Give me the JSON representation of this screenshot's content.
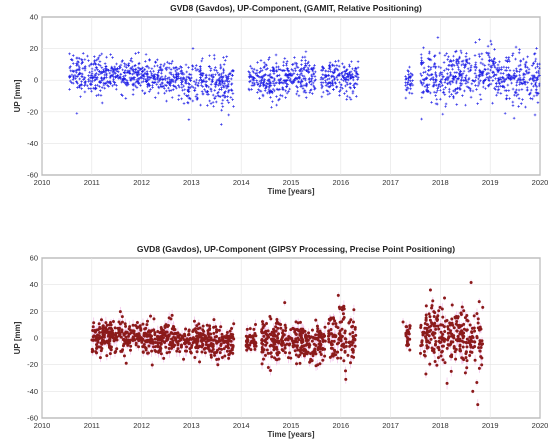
{
  "chart_data": [
    {
      "type": "scatter",
      "title": "GVD8 (Gavdos), UP-Component, (GAMIT, Relative Positioning)",
      "xlabel": "Time [years]",
      "ylabel": "UP [mm]",
      "xlim": [
        2010,
        2020
      ],
      "ylim": [
        -60,
        40
      ],
      "xticks": [
        "2010",
        "2011",
        "2012",
        "2013",
        "2014",
        "2015",
        "2016",
        "2017",
        "2018",
        "2019",
        "2020"
      ],
      "yticks": [
        "-60",
        "-40",
        "-20",
        "0",
        "20",
        "40"
      ],
      "grid": true,
      "marker_color": "#1f1fe6",
      "marker": "plus",
      "series": [
        {
          "segments": [
            {
              "x_start": 2010.55,
              "x_end": 2011.2,
              "mean": 4,
              "spread": 6
            },
            {
              "x_start": 2011.2,
              "x_end": 2012.0,
              "mean": 3,
              "spread": 5
            },
            {
              "x_start": 2012.0,
              "x_end": 2012.85,
              "mean": 1,
              "spread": 5
            },
            {
              "x_start": 2012.85,
              "x_end": 2013.85,
              "mean": -2,
              "spread": 7
            },
            {
              "x_start": 2014.15,
              "x_end": 2014.8,
              "mean": 0,
              "spread": 6
            },
            {
              "x_start": 2014.8,
              "x_end": 2015.5,
              "mean": 1,
              "spread": 6
            },
            {
              "x_start": 2015.6,
              "x_end": 2016.35,
              "mean": 1,
              "spread": 5
            },
            {
              "x_start": 2017.3,
              "x_end": 2017.45,
              "mean": 0,
              "spread": 4
            },
            {
              "x_start": 2017.6,
              "x_end": 2018.3,
              "mean": 2,
              "spread": 8
            },
            {
              "x_start": 2018.3,
              "x_end": 2019.1,
              "mean": 4,
              "spread": 8
            },
            {
              "x_start": 2019.1,
              "x_end": 2020.0,
              "mean": 0,
              "spread": 8
            }
          ],
          "outliers": [
            [
              2010.7,
              -21
            ],
            [
              2012.95,
              -25
            ],
            [
              2013.6,
              -28
            ],
            [
              2013.75,
              -22
            ],
            [
              2017.95,
              27
            ],
            [
              2019.3,
              -21
            ],
            [
              2019.9,
              -22
            ],
            [
              2014.7,
              16
            ],
            [
              2015.3,
              18
            ]
          ]
        }
      ]
    },
    {
      "type": "scatter",
      "title": "GVD8 (Gavdos), UP-Component (GIPSY Processing, Precise Point Positioning)",
      "xlabel": "Time [years]",
      "ylabel": "UP [mm]",
      "xlim": [
        2010,
        2020
      ],
      "ylim": [
        -60,
        60
      ],
      "xticks": [
        "2010",
        "2011",
        "2012",
        "2013",
        "2014",
        "2015",
        "2016",
        "2017",
        "2018",
        "2019",
        "2020"
      ],
      "yticks": [
        "-60",
        "-40",
        "-20",
        "0",
        "20",
        "40",
        "60"
      ],
      "grid": true,
      "marker_color": "#8b1a1a",
      "error_color": "#f3c8ee",
      "marker": "dot",
      "series": [
        {
          "segments": [
            {
              "x_start": 2011.0,
              "x_end": 2012.0,
              "mean": 1,
              "spread": 6
            },
            {
              "x_start": 2012.0,
              "x_end": 2012.9,
              "mean": 0,
              "spread": 6
            },
            {
              "x_start": 2012.9,
              "x_end": 2013.85,
              "mean": -2,
              "spread": 6
            },
            {
              "x_start": 2014.1,
              "x_end": 2014.3,
              "mean": -3,
              "spread": 5
            },
            {
              "x_start": 2014.4,
              "x_end": 2015.2,
              "mean": -2,
              "spread": 8
            },
            {
              "x_start": 2015.2,
              "x_end": 2015.7,
              "mean": -4,
              "spread": 7
            },
            {
              "x_start": 2015.75,
              "x_end": 2016.3,
              "mean": 0,
              "spread": 10
            },
            {
              "x_start": 2017.3,
              "x_end": 2017.4,
              "mean": 0,
              "spread": 5
            },
            {
              "x_start": 2017.6,
              "x_end": 2018.2,
              "mean": 3,
              "spread": 12
            },
            {
              "x_start": 2018.2,
              "x_end": 2018.85,
              "mean": 0,
              "spread": 11
            }
          ],
          "outliers": [
            [
              2015.95,
              32
            ],
            [
              2016.1,
              -31
            ],
            [
              2017.8,
              36
            ],
            [
              2018.65,
              -40
            ],
            [
              2018.75,
              -50
            ],
            [
              2017.25,
              12
            ],
            [
              2018.85,
              23
            ]
          ]
        }
      ]
    }
  ]
}
